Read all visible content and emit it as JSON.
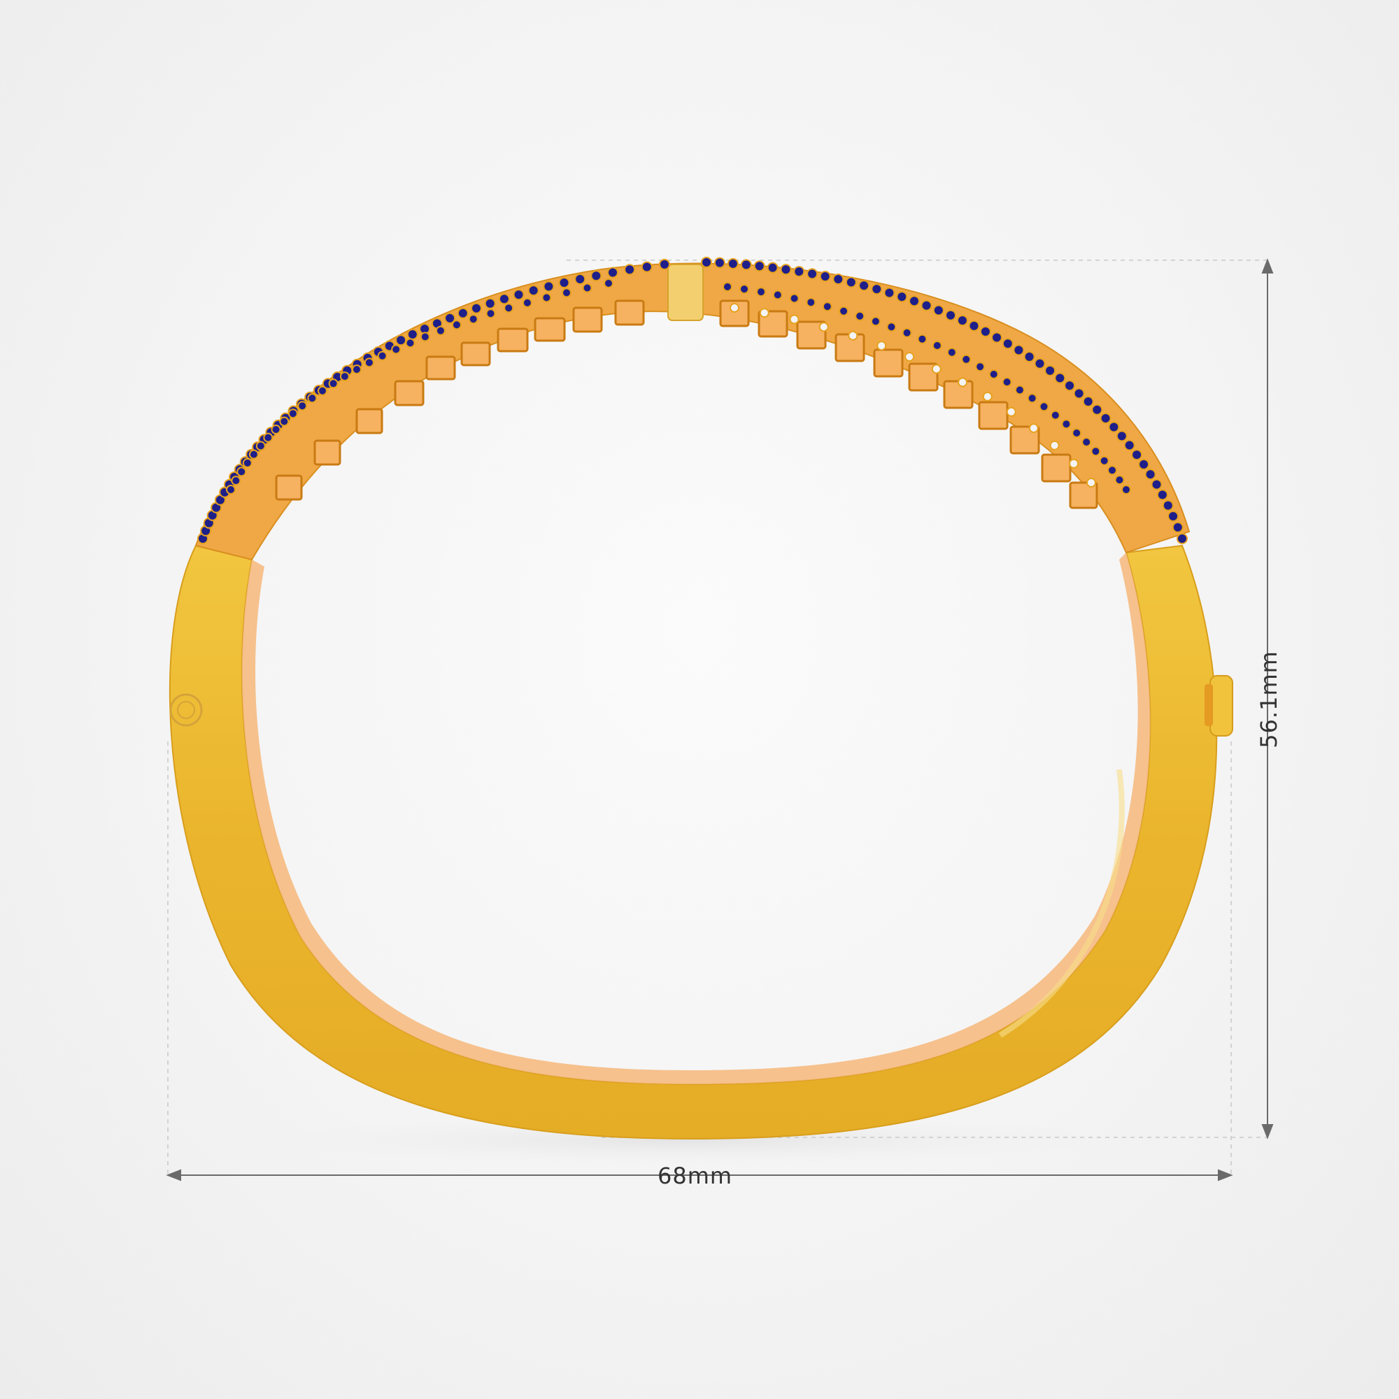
{
  "product": {
    "name_icon": "bangle-bracelet",
    "metal_color": "#e8b22a",
    "gem_color": "#1f1f8a",
    "accent_diamond_color": "#f4f4f8"
  },
  "dimensions": {
    "width_label": "68mm",
    "height_label": "56.1mm"
  }
}
